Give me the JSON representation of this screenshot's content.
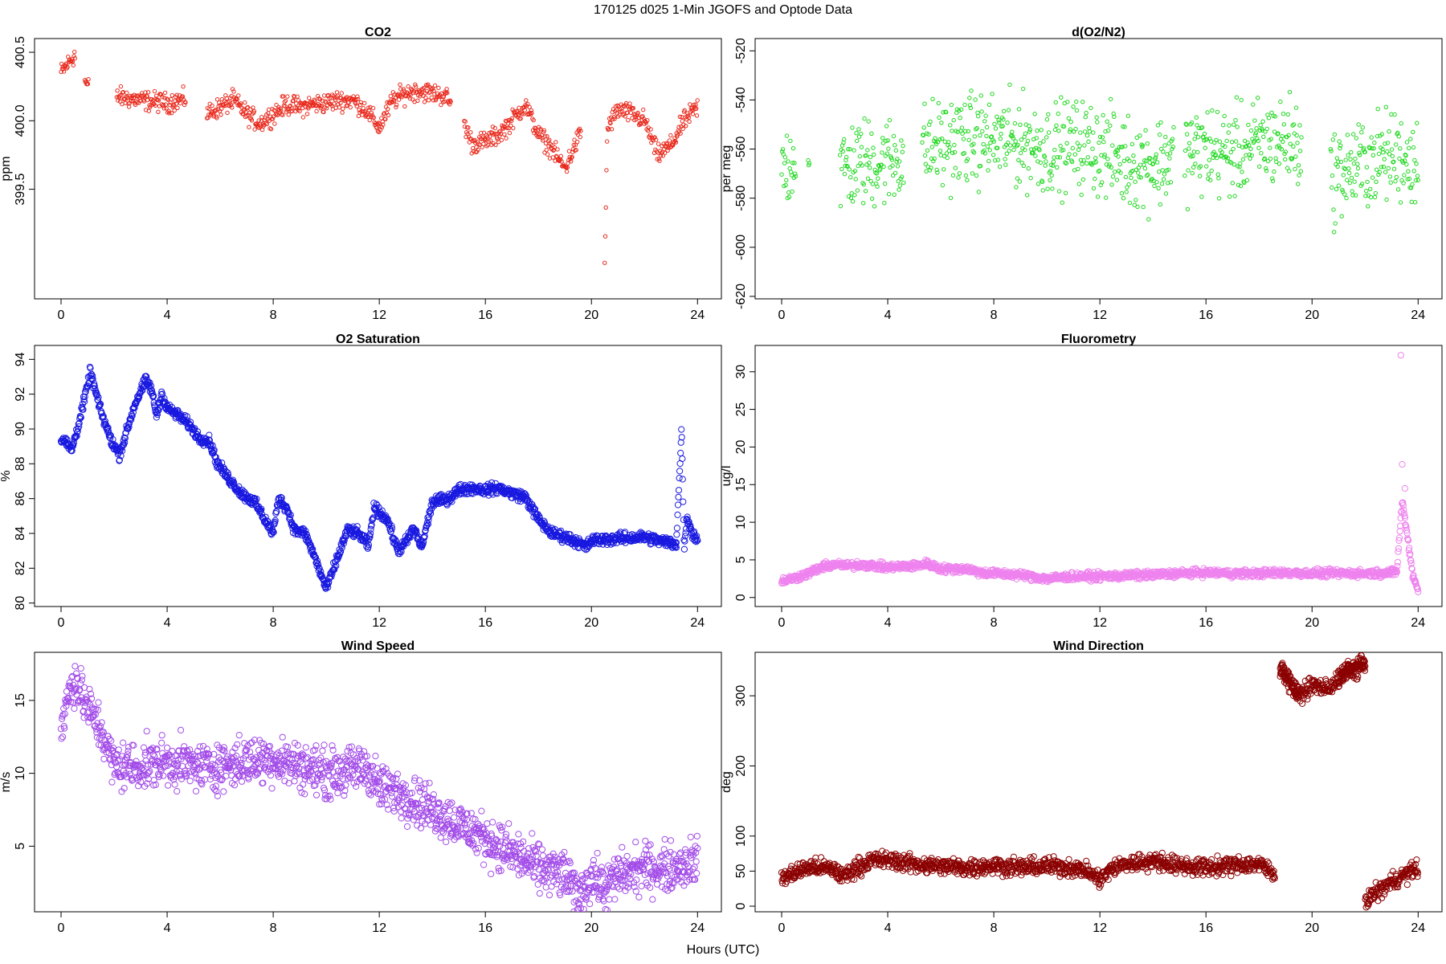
{
  "figure": {
    "title": "170125   d025   1-Min  JGOFS and Optode Data",
    "xlabel": "Hours (UTC)"
  },
  "chart_data": [
    {
      "type": "scatter",
      "title": "CO2",
      "ylabel": "ppm",
      "color": "#e8291c",
      "marker": "small",
      "xlim": [
        -1,
        24.9
      ],
      "ylim": [
        398.7,
        400.6
      ],
      "xticks": [
        0,
        4,
        8,
        12,
        16,
        20,
        24
      ],
      "yticks": [
        399.5,
        400.0,
        400.5
      ],
      "ytick_labels": [
        "399.5",
        "400.0",
        "400.5"
      ],
      "segments": [
        [
          0,
          0.55
        ],
        [
          0.9,
          1.05
        ],
        [
          2.1,
          4.7
        ],
        [
          5.5,
          14.7
        ],
        [
          15.2,
          19.6
        ],
        [
          20.5,
          24
        ]
      ],
      "x": [
        0,
        0.5,
        1,
        2,
        3,
        4,
        4.7,
        5.5,
        6,
        6.5,
        7,
        7.5,
        8,
        8.5,
        9,
        9.5,
        10,
        10.5,
        11,
        11.5,
        12,
        12.5,
        13,
        13.5,
        14,
        14.5,
        15.2,
        15.5,
        16,
        16.5,
        17,
        17.5,
        18,
        18.5,
        19,
        19.3,
        19.6,
        20.5,
        20.6,
        21,
        21.5,
        22,
        22.5,
        23,
        23.5,
        24
      ],
      "y": [
        400.35,
        400.48,
        400.25,
        400.18,
        400.15,
        400.13,
        400.16,
        400.05,
        400.1,
        400.15,
        400.05,
        399.98,
        400.05,
        400.12,
        400.1,
        400.12,
        400.13,
        400.15,
        400.15,
        400.08,
        399.95,
        400.15,
        400.2,
        400.22,
        400.2,
        400.18,
        399.98,
        399.83,
        399.85,
        399.9,
        400.0,
        400.12,
        399.9,
        399.8,
        399.65,
        399.78,
        399.92,
        398.95,
        399.95,
        400.08,
        400.05,
        400.0,
        399.75,
        399.82,
        400.0,
        400.1
      ],
      "noise": 0.035
    },
    {
      "type": "scatter",
      "title": "d(O2/N2)",
      "ylabel": "per meg",
      "color": "#1ed81e",
      "marker": "small",
      "xlim": [
        -1,
        24.9
      ],
      "ylim": [
        -621,
        -515
      ],
      "xticks": [
        0,
        4,
        8,
        12,
        16,
        20,
        24
      ],
      "yticks": [
        -620,
        -600,
        -580,
        -560,
        -540,
        -520
      ],
      "ytick_labels": [
        "-620",
        "-600",
        "-580",
        "-560",
        "-540",
        "-520"
      ],
      "segments": [
        [
          0,
          0.55
        ],
        [
          1,
          1.05
        ],
        [
          2.2,
          4.6
        ],
        [
          5.3,
          14.8
        ],
        [
          15.2,
          19.6
        ],
        [
          20.7,
          24
        ]
      ],
      "x": [
        0,
        0.5,
        1,
        2.2,
        3,
        4,
        4.6,
        5.3,
        6,
        7,
        8,
        9,
        10,
        11,
        12,
        13,
        14,
        14.8,
        15.2,
        16,
        17,
        18,
        19,
        19.6,
        20.7,
        21,
        22,
        23,
        24
      ],
      "y": [
        -570,
        -562,
        -565,
        -568,
        -566,
        -565,
        -562,
        -560,
        -558,
        -556,
        -556,
        -557,
        -560,
        -558,
        -560,
        -565,
        -566,
        -563,
        -562,
        -560,
        -562,
        -558,
        -556,
        -558,
        -572,
        -570,
        -566,
        -562,
        -565
      ],
      "noise": 9
    },
    {
      "type": "scatter",
      "title": "O2 Saturation",
      "ylabel": "%",
      "color": "#1818e0",
      "marker": "large",
      "xlim": [
        -1,
        24.9
      ],
      "ylim": [
        79.8,
        94.8
      ],
      "xticks": [
        0,
        4,
        8,
        12,
        16,
        20,
        24
      ],
      "yticks": [
        80,
        82,
        84,
        86,
        88,
        90,
        92,
        94
      ],
      "ytick_labels": [
        "80",
        "82",
        "84",
        "86",
        "88",
        "90",
        "92",
        "94"
      ],
      "segments": [
        [
          0,
          23.2
        ],
        [
          23.2,
          24
        ]
      ],
      "x": [
        0,
        0.2,
        0.4,
        0.7,
        1.0,
        1.1,
        1.5,
        1.9,
        2.2,
        2.4,
        2.8,
        3.2,
        3.4,
        3.6,
        3.8,
        4.0,
        4.4,
        4.8,
        5.2,
        5.6,
        5.9,
        6.3,
        6.8,
        7.3,
        7.8,
        8.0,
        8.2,
        8.5,
        8.8,
        9.2,
        9.6,
        10.0,
        10.4,
        10.8,
        11.2,
        11.6,
        11.8,
        12.3,
        12.7,
        13.0,
        13.3,
        13.6,
        14.0,
        14.6,
        15.0,
        15.5,
        16.0,
        16.5,
        17.0,
        17.5,
        18.0,
        18.5,
        19.0,
        19.5,
        19.8,
        20.0,
        21.0,
        22.0,
        22.5,
        23.2,
        23.4,
        23.5,
        23.6,
        23.8,
        24.0
      ],
      "y": [
        89.5,
        89.2,
        88.8,
        90.5,
        92.5,
        93.3,
        91.0,
        89.3,
        88.5,
        89.5,
        91.5,
        92.8,
        92.3,
        90.8,
        92.0,
        91.2,
        90.8,
        90.3,
        89.5,
        89.3,
        88.0,
        87.2,
        86.3,
        85.8,
        84.5,
        84.0,
        86.0,
        85.5,
        84.2,
        84.0,
        82.5,
        80.8,
        82.5,
        84.2,
        84.0,
        83.3,
        85.5,
        84.8,
        83.0,
        83.5,
        84.3,
        83.2,
        85.8,
        86.0,
        86.5,
        86.6,
        86.5,
        86.6,
        86.3,
        86.1,
        84.8,
        84.0,
        83.8,
        83.5,
        83.2,
        83.6,
        83.7,
        83.8,
        83.6,
        83.4,
        90.0,
        83.0,
        85.0,
        84.0,
        83.6
      ],
      "noise": 0.15
    },
    {
      "type": "scatter",
      "title": "Fluorometry",
      "ylabel": "ug/l",
      "color": "#ee82ee",
      "marker": "large",
      "xlim": [
        -1,
        24.9
      ],
      "ylim": [
        -1.2,
        33.5
      ],
      "xticks": [
        0,
        4,
        8,
        12,
        16,
        20,
        24
      ],
      "yticks": [
        0,
        5,
        10,
        15,
        20,
        25,
        30
      ],
      "ytick_labels": [
        "0",
        "5",
        "10",
        "15",
        "20",
        "25",
        "30"
      ],
      "segments": [
        [
          0,
          23.2
        ],
        [
          23.2,
          24
        ]
      ],
      "x": [
        0,
        0.5,
        1,
        1.5,
        2,
        2.5,
        3,
        3.5,
        4,
        5,
        5.5,
        6,
        7,
        7.5,
        8,
        9,
        10,
        11,
        12,
        13,
        14,
        15,
        16,
        17,
        18,
        19,
        20,
        21,
        22,
        23,
        23.2,
        23.4,
        23.6,
        23.8,
        24
      ],
      "y": [
        2.2,
        2.6,
        3.2,
        4.0,
        4.4,
        4.2,
        4.4,
        4.2,
        4.0,
        4.2,
        4.5,
        3.8,
        3.8,
        3.3,
        3.2,
        3.0,
        2.5,
        2.8,
        2.8,
        2.9,
        3.0,
        3.2,
        3.3,
        3.2,
        3.2,
        3.3,
        3.2,
        3.2,
        3.2,
        3.3,
        3.5,
        13.0,
        8.0,
        3.0,
        1.0
      ],
      "noise": 0.25,
      "extra_points": [
        [
          23.35,
          32.2
        ],
        [
          23.4,
          17.7
        ],
        [
          23.5,
          14.5
        ]
      ]
    },
    {
      "type": "scatter",
      "title": "Wind Speed",
      "ylabel": "m/s",
      "color": "#a24be8",
      "marker": "large",
      "xlim": [
        -1,
        24.9
      ],
      "ylim": [
        0.5,
        18.3
      ],
      "xticks": [
        0,
        4,
        8,
        12,
        16,
        20,
        24
      ],
      "yticks": [
        5,
        10,
        15
      ],
      "ytick_labels": [
        "5",
        "10",
        "15"
      ],
      "segments": [
        [
          0,
          24
        ]
      ],
      "x": [
        0,
        0.3,
        0.5,
        1,
        1.5,
        2,
        3,
        4,
        5,
        6,
        7,
        8,
        9,
        10,
        11,
        11.5,
        12,
        13,
        14,
        15,
        16,
        17,
        18,
        19,
        19.5,
        20,
        20.5,
        21,
        22,
        23,
        24
      ],
      "y": [
        13.0,
        15.5,
        16.5,
        14.5,
        13.0,
        10.5,
        10.5,
        10.8,
        10.5,
        10.5,
        10.8,
        11.0,
        10.5,
        10.0,
        10.2,
        10.5,
        9.0,
        8.5,
        7.5,
        6.5,
        5.5,
        4.5,
        3.5,
        3.0,
        1.5,
        3.0,
        2.0,
        3.0,
        3.5,
        3.5,
        4.0
      ],
      "noise": 0.8
    },
    {
      "type": "scatter",
      "title": "Wind Direction",
      "ylabel": "deg",
      "color": "#8b0000",
      "marker": "large",
      "xlim": [
        -1,
        24.9
      ],
      "ylim": [
        -8,
        362
      ],
      "xticks": [
        0,
        4,
        8,
        12,
        16,
        20,
        24
      ],
      "yticks": [
        0,
        50,
        100,
        200,
        300
      ],
      "ytick_labels": [
        "0",
        "50",
        "100",
        "200",
        "300"
      ],
      "segments": [
        [
          0,
          18.6
        ],
        [
          18.8,
          22.0
        ],
        [
          18.8,
          19.5
        ],
        [
          21.0,
          24
        ]
      ],
      "x": [
        0,
        0.5,
        1,
        1.5,
        2,
        2.3,
        2.8,
        3.5,
        4.2,
        5,
        6,
        7,
        8,
        9,
        10,
        11,
        11.5,
        12,
        12.5,
        13,
        14,
        15,
        16,
        17,
        17.5,
        18.0,
        18.6,
        18.8,
        19.5,
        20.0,
        20.6,
        21.3,
        22.0,
        21.0,
        22.0,
        23.0,
        24.0
      ],
      "y": [
        40,
        48,
        55,
        55,
        52,
        42,
        55,
        66,
        65,
        60,
        57,
        55,
        58,
        55,
        57,
        55,
        50,
        38,
        55,
        60,
        65,
        58,
        55,
        58,
        60,
        60,
        45,
        340,
        300,
        315,
        310,
        335,
        345,
        2,
        8,
        35,
        55
      ],
      "noise": 6
    }
  ]
}
